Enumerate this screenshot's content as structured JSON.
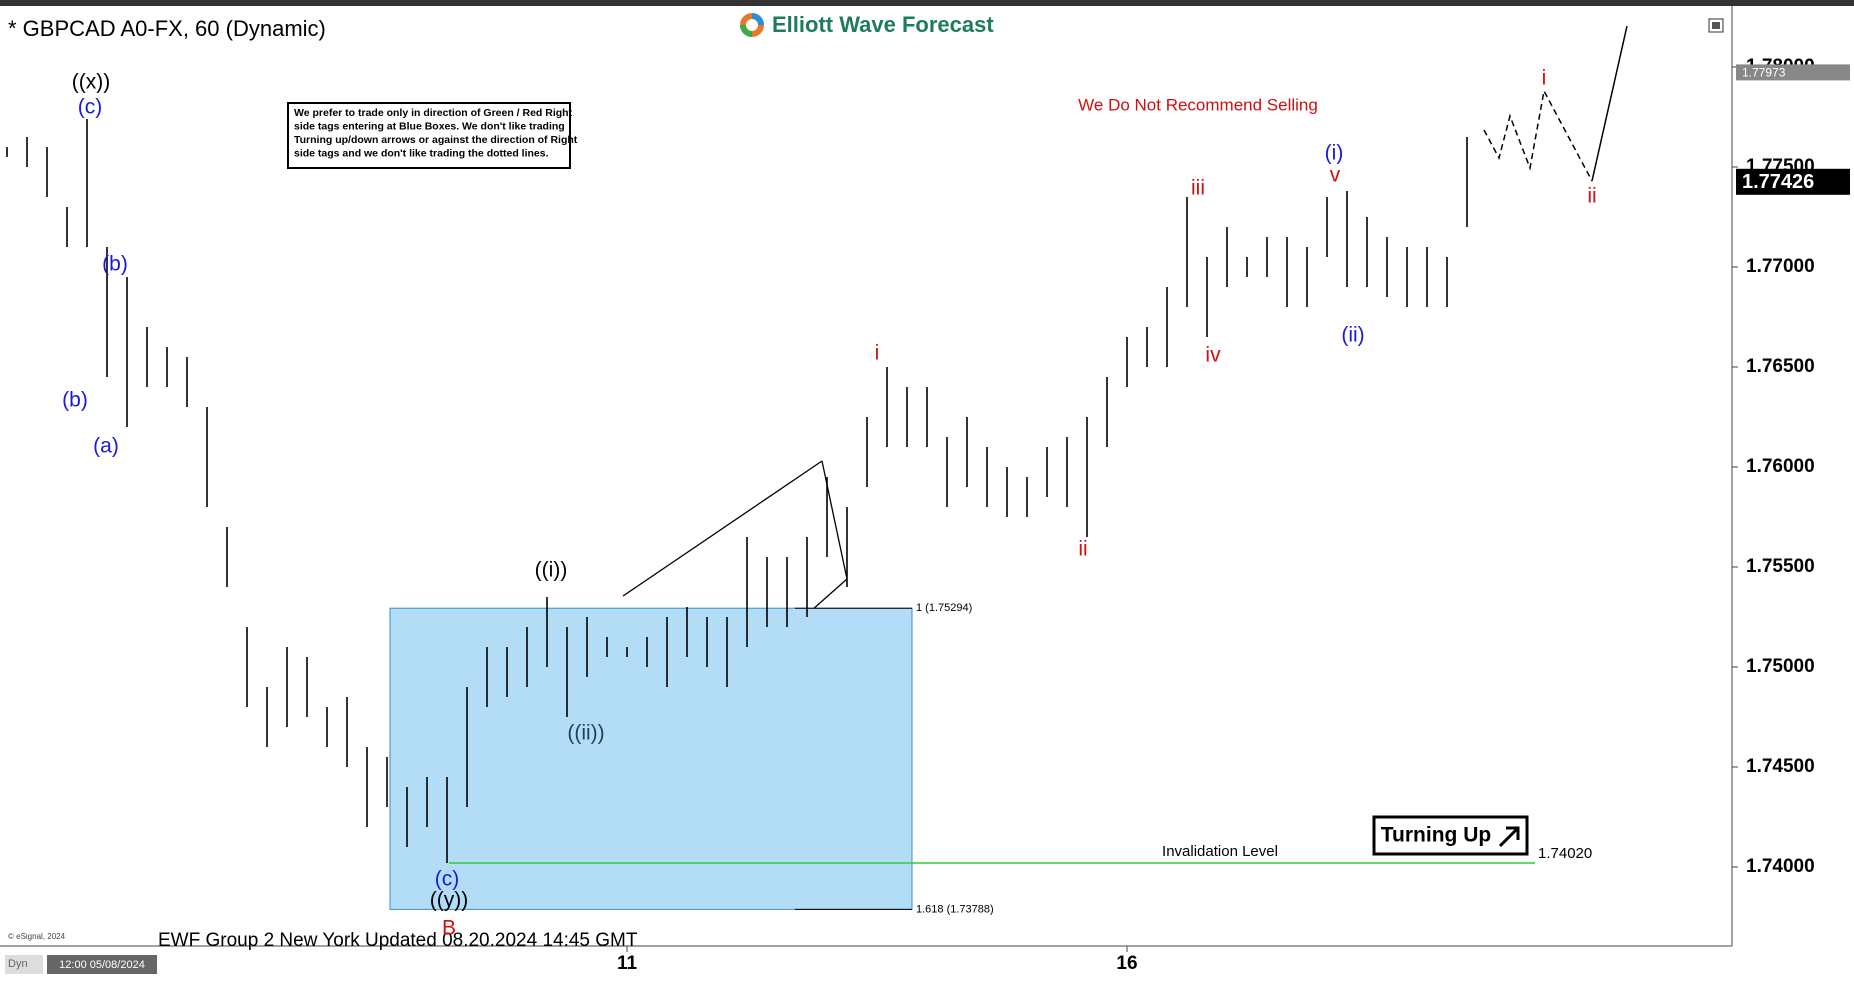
{
  "chart_data": {
    "type": "ohlc",
    "title": "* GBPCAD A0-FX, 60 (Dynamic)",
    "brand": "Elliott Wave Forecast",
    "notice_lines": [
      "We prefer to trade only in direction of Green / Red Right",
      "side tags entering at Blue Boxes. We don't like trading",
      "Turning up/down arrows or against the direction of Right",
      "side tags and we don't like trading the dotted lines."
    ],
    "headline": "We Do Not Recommend Selling",
    "signal": "Turning Up",
    "footer": "EWF Group 2 New York Updated 08.20.2024 14:45 GMT",
    "copyright": "© eSignal, 2024",
    "cursor_time": "12:00 05/08/2024",
    "mode": "Dyn",
    "color": "#000000",
    "categories": [
      null,
      null,
      null,
      null,
      null,
      null,
      null,
      null,
      null,
      null,
      null,
      null,
      null,
      null,
      null,
      null,
      null,
      null,
      null,
      null,
      null,
      null,
      null,
      null,
      null,
      null,
      null,
      null,
      null,
      null,
      null,
      "11",
      null,
      null,
      null,
      null,
      null,
      null,
      null,
      null,
      null,
      null,
      null,
      null,
      null,
      null,
      null,
      null,
      null,
      null,
      null,
      null,
      null,
      null,
      null,
      null,
      "16",
      null,
      null,
      null,
      null,
      null,
      null,
      null,
      null,
      null,
      null,
      null,
      null,
      null,
      null,
      null,
      null,
      null
    ],
    "high": [
      1.776,
      1.7765,
      1.776,
      1.773,
      1.7774,
      1.771,
      1.7695,
      1.767,
      1.766,
      1.7655,
      1.763,
      1.757,
      1.752,
      1.749,
      1.751,
      1.7505,
      1.748,
      1.7485,
      1.746,
      1.7455,
      1.744,
      1.7445,
      1.7445,
      1.749,
      1.751,
      1.751,
      1.752,
      1.7535,
      1.752,
      1.7525,
      1.7515,
      1.751,
      1.7515,
      1.7525,
      1.753,
      1.7525,
      1.7525,
      1.7565,
      1.7555,
      1.7555,
      1.7565,
      1.7595,
      1.758,
      1.7625,
      1.765,
      1.764,
      1.764,
      1.7615,
      1.7625,
      1.761,
      1.76,
      1.7595,
      1.761,
      1.7615,
      1.7625,
      1.7645,
      1.7665,
      1.767,
      1.769,
      1.7735,
      1.7705,
      1.772,
      1.7705,
      1.7715,
      1.7715,
      1.771,
      1.7735,
      1.7738,
      1.7725,
      1.7715,
      1.771,
      1.771,
      1.7705,
      1.7765
    ],
    "low": [
      1.7755,
      1.775,
      1.7735,
      1.771,
      1.771,
      1.7645,
      1.762,
      1.764,
      1.764,
      1.763,
      1.758,
      1.754,
      1.748,
      1.746,
      1.747,
      1.7475,
      1.746,
      1.745,
      1.742,
      1.743,
      1.741,
      1.742,
      1.7402,
      1.743,
      1.748,
      1.7485,
      1.749,
      1.75,
      1.7475,
      1.7495,
      1.7505,
      1.7505,
      1.75,
      1.749,
      1.7505,
      1.75,
      1.749,
      1.751,
      1.752,
      1.752,
      1.7525,
      1.7555,
      1.754,
      1.759,
      1.761,
      1.761,
      1.761,
      1.758,
      1.759,
      1.758,
      1.7575,
      1.7575,
      1.7585,
      1.758,
      1.7565,
      1.761,
      1.764,
      1.765,
      1.765,
      1.768,
      1.7665,
      1.769,
      1.7695,
      1.7695,
      1.768,
      1.768,
      1.7705,
      1.769,
      1.769,
      1.7685,
      1.768,
      1.768,
      1.768,
      1.772
    ],
    "ylim": [
      1.7361,
      1.78295
    ],
    "yticks": [
      {
        "value": 1.74,
        "label": "1.74000"
      },
      {
        "value": 1.745,
        "label": "1.74500"
      },
      {
        "value": 1.75,
        "label": "1.75000"
      },
      {
        "value": 1.755,
        "label": "1.75500"
      },
      {
        "value": 1.76,
        "label": "1.76000"
      },
      {
        "value": 1.765,
        "label": "1.76500"
      },
      {
        "value": 1.77,
        "label": "1.77000"
      },
      {
        "value": 1.775,
        "label": "1.77500"
      },
      {
        "value": 1.78,
        "label": "1.78000"
      }
    ],
    "blue_box": {
      "color": "#b3dcf7",
      "levels": [
        {
          "value": 1.75294,
          "label": "1 (1.75294)"
        },
        {
          "value": 1.73788,
          "label": "1.618 (1.73788)"
        }
      ]
    },
    "invalidation": {
      "text": "Invalidation Level",
      "value": 1.7402,
      "label": "1.74020",
      "color": "#33cc33"
    },
    "price_tags": [
      {
        "value": 1.77973,
        "label": "1.77973"
      },
      {
        "value": 1.77426,
        "label": "1.77426"
      }
    ],
    "annotations": [
      {
        "text": "((x))",
        "color": "#000000"
      },
      {
        "text": "(c)",
        "color": "#1a1ad6"
      },
      {
        "text": "(b)",
        "color": "#1a1ad6"
      },
      {
        "text": "(b)",
        "color": "#1a1ad6"
      },
      {
        "text": "(a)",
        "color": "#1a1ad6"
      },
      {
        "text": "((i))",
        "color": "#000000"
      },
      {
        "text": "((ii))",
        "color": "#1f3f5f"
      },
      {
        "text": "(c)",
        "color": "#1a1ad6"
      },
      {
        "text": "((y))",
        "color": "#000000"
      },
      {
        "text": "B",
        "color": "#d01010"
      },
      {
        "text": "i",
        "color": "#d01010"
      },
      {
        "text": "ii",
        "color": "#d01010"
      },
      {
        "text": "iii",
        "color": "#d01010"
      },
      {
        "text": "iv",
        "color": "#d01010"
      },
      {
        "text": "(i)",
        "color": "#1a1ad6"
      },
      {
        "text": "v",
        "color": "#d01010"
      },
      {
        "text": "(ii)",
        "color": "#1a1ad6"
      },
      {
        "text": "i",
        "color": "#d01010"
      },
      {
        "text": "ii",
        "color": "#d01010"
      }
    ]
  }
}
